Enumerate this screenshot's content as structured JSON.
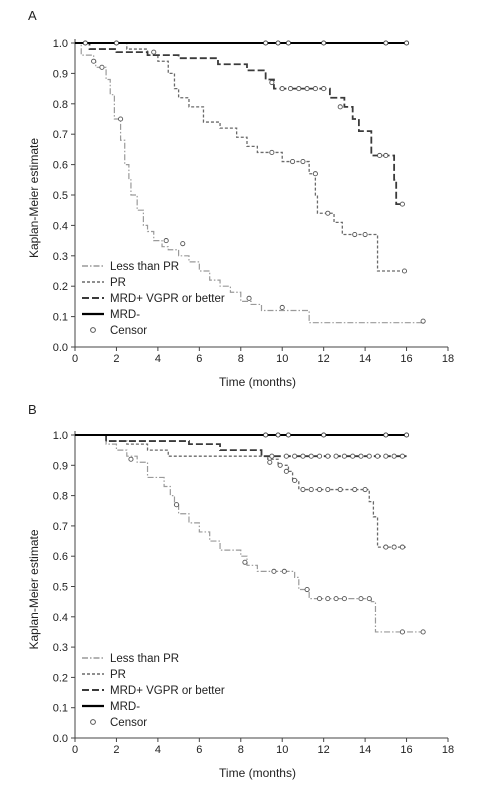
{
  "chart_data": [
    {
      "panel_label": "A",
      "type": "line",
      "xlabel": "Time (months)",
      "ylabel": "Kaplan-Meier estimate",
      "xlim": [
        0,
        18
      ],
      "ylim": [
        0.0,
        1.0
      ],
      "xticks": [
        "0",
        "2",
        "4",
        "6",
        "8",
        "10",
        "12",
        "14",
        "16",
        "18"
      ],
      "yticks": [
        "0.0",
        "0.1",
        "0.2",
        "0.3",
        "0.4",
        "0.5",
        "0.6",
        "0.7",
        "0.8",
        "0.9",
        "1.0"
      ],
      "legend": [
        {
          "label": "Less than PR",
          "style": "dash-dot",
          "color": "#9a9a9a"
        },
        {
          "label": "PR",
          "style": "short-dash",
          "color": "#6a6a6a"
        },
        {
          "label": "MRD+ VGPR or better",
          "style": "long-dash",
          "color": "#3a3a3a"
        },
        {
          "label": "MRD-",
          "style": "solid",
          "color": "#000000"
        },
        {
          "label": "Censor",
          "style": "marker",
          "color": "#555555"
        }
      ],
      "series": [
        {
          "name": "Less than PR",
          "style": "dash-dot",
          "color": "#9a9a9a",
          "steps": [
            [
              0,
              1.0
            ],
            [
              0.3,
              0.96
            ],
            [
              0.9,
              0.94
            ],
            [
              1.0,
              0.92
            ],
            [
              1.5,
              0.88
            ],
            [
              1.7,
              0.83
            ],
            [
              1.9,
              0.75
            ],
            [
              2.2,
              0.68
            ],
            [
              2.4,
              0.6
            ],
            [
              2.6,
              0.55
            ],
            [
              2.7,
              0.5
            ],
            [
              3.0,
              0.45
            ],
            [
              3.3,
              0.4
            ],
            [
              3.5,
              0.38
            ],
            [
              3.8,
              0.35
            ],
            [
              4.2,
              0.33
            ],
            [
              4.5,
              0.32
            ],
            [
              5.0,
              0.3
            ],
            [
              5.5,
              0.28
            ],
            [
              6.0,
              0.25
            ],
            [
              6.5,
              0.22
            ],
            [
              7.0,
              0.2
            ],
            [
              7.5,
              0.18
            ],
            [
              8.0,
              0.15
            ],
            [
              8.5,
              0.14
            ],
            [
              9.0,
              0.12
            ],
            [
              11.3,
              0.08
            ],
            [
              16.8,
              0.08
            ]
          ],
          "censors": [
            [
              0.9,
              0.94
            ],
            [
              1.3,
              0.92
            ],
            [
              2.2,
              0.75
            ],
            [
              4.4,
              0.35
            ],
            [
              5.2,
              0.34
            ],
            [
              8.4,
              0.16
            ],
            [
              10.0,
              0.13
            ],
            [
              16.8,
              0.085
            ]
          ]
        },
        {
          "name": "PR",
          "style": "short-dash",
          "color": "#6a6a6a",
          "steps": [
            [
              0,
              1.0
            ],
            [
              2.5,
              0.98
            ],
            [
              3.5,
              0.96
            ],
            [
              4.0,
              0.94
            ],
            [
              4.5,
              0.9
            ],
            [
              4.8,
              0.85
            ],
            [
              5.0,
              0.82
            ],
            [
              5.5,
              0.79
            ],
            [
              6.2,
              0.74
            ],
            [
              7.0,
              0.72
            ],
            [
              7.8,
              0.69
            ],
            [
              8.3,
              0.66
            ],
            [
              8.8,
              0.64
            ],
            [
              10.0,
              0.61
            ],
            [
              11.3,
              0.57
            ],
            [
              11.6,
              0.5
            ],
            [
              11.7,
              0.44
            ],
            [
              12.5,
              0.41
            ],
            [
              12.9,
              0.37
            ],
            [
              14.6,
              0.25
            ],
            [
              15.9,
              0.25
            ]
          ],
          "censors": [
            [
              9.5,
              0.64
            ],
            [
              10.5,
              0.61
            ],
            [
              11.0,
              0.61
            ],
            [
              11.6,
              0.57
            ],
            [
              12.2,
              0.44
            ],
            [
              13.5,
              0.37
            ],
            [
              14.0,
              0.37
            ],
            [
              15.9,
              0.25
            ]
          ]
        },
        {
          "name": "MRD+ VGPR or better",
          "style": "long-dash",
          "color": "#3a3a3a",
          "steps": [
            [
              0,
              1.0
            ],
            [
              0.7,
              0.98
            ],
            [
              2.0,
              0.97
            ],
            [
              3.5,
              0.96
            ],
            [
              5.0,
              0.95
            ],
            [
              6.9,
              0.93
            ],
            [
              8.3,
              0.91
            ],
            [
              9.2,
              0.88
            ],
            [
              9.6,
              0.85
            ],
            [
              12.3,
              0.82
            ],
            [
              13.0,
              0.79
            ],
            [
              13.4,
              0.75
            ],
            [
              13.7,
              0.71
            ],
            [
              14.3,
              0.63
            ],
            [
              15.4,
              0.55
            ],
            [
              15.5,
              0.47
            ],
            [
              15.9,
              0.47
            ]
          ],
          "censors": [
            [
              3.8,
              0.97
            ],
            [
              9.5,
              0.87
            ],
            [
              10.0,
              0.85
            ],
            [
              10.4,
              0.85
            ],
            [
              10.8,
              0.85
            ],
            [
              11.2,
              0.85
            ],
            [
              11.6,
              0.85
            ],
            [
              12.0,
              0.85
            ],
            [
              12.8,
              0.79
            ],
            [
              14.7,
              0.63
            ],
            [
              15.0,
              0.63
            ],
            [
              15.8,
              0.47
            ]
          ]
        },
        {
          "name": "MRD-",
          "style": "solid",
          "color": "#000000",
          "steps": [
            [
              0,
              1.0
            ],
            [
              16.0,
              1.0
            ]
          ],
          "censors": [
            [
              0.5,
              1.0
            ],
            [
              2.0,
              1.0
            ],
            [
              9.2,
              1.0
            ],
            [
              9.8,
              1.0
            ],
            [
              10.3,
              1.0
            ],
            [
              12.0,
              1.0
            ],
            [
              15.0,
              1.0
            ],
            [
              16.0,
              1.0
            ]
          ]
        }
      ]
    },
    {
      "panel_label": "B",
      "type": "line",
      "xlabel": "Time (months)",
      "ylabel": "Kaplan-Meier estimate",
      "xlim": [
        0,
        18
      ],
      "ylim": [
        0.0,
        1.0
      ],
      "xticks": [
        "0",
        "2",
        "4",
        "6",
        "8",
        "10",
        "12",
        "14",
        "16",
        "18"
      ],
      "yticks": [
        "0.0",
        "0.1",
        "0.2",
        "0.3",
        "0.4",
        "0.5",
        "0.6",
        "0.7",
        "0.8",
        "0.9",
        "1.0"
      ],
      "legend": [
        {
          "label": "Less than PR",
          "style": "dash-dot",
          "color": "#9a9a9a"
        },
        {
          "label": "PR",
          "style": "short-dash",
          "color": "#6a6a6a"
        },
        {
          "label": "MRD+ VGPR or better",
          "style": "long-dash",
          "color": "#3a3a3a"
        },
        {
          "label": "MRD-",
          "style": "solid",
          "color": "#000000"
        },
        {
          "label": "Censor",
          "style": "marker",
          "color": "#555555"
        }
      ],
      "series": [
        {
          "name": "Less than PR",
          "style": "dash-dot",
          "color": "#9a9a9a",
          "steps": [
            [
              0,
              1.0
            ],
            [
              1.5,
              0.97
            ],
            [
              2.0,
              0.95
            ],
            [
              2.5,
              0.93
            ],
            [
              3.0,
              0.91
            ],
            [
              3.5,
              0.86
            ],
            [
              4.3,
              0.83
            ],
            [
              4.6,
              0.8
            ],
            [
              4.8,
              0.77
            ],
            [
              5.0,
              0.74
            ],
            [
              5.5,
              0.71
            ],
            [
              6.0,
              0.68
            ],
            [
              6.5,
              0.65
            ],
            [
              7.0,
              0.62
            ],
            [
              8.0,
              0.6
            ],
            [
              8.3,
              0.57
            ],
            [
              8.8,
              0.55
            ],
            [
              10.6,
              0.53
            ],
            [
              10.8,
              0.49
            ],
            [
              11.3,
              0.46
            ],
            [
              14.3,
              0.45
            ],
            [
              14.5,
              0.35
            ],
            [
              16.8,
              0.35
            ]
          ],
          "censors": [
            [
              2.7,
              0.92
            ],
            [
              4.9,
              0.77
            ],
            [
              8.2,
              0.58
            ],
            [
              9.6,
              0.55
            ],
            [
              10.1,
              0.55
            ],
            [
              11.2,
              0.49
            ],
            [
              11.8,
              0.46
            ],
            [
              12.2,
              0.46
            ],
            [
              12.6,
              0.46
            ],
            [
              13.0,
              0.46
            ],
            [
              13.8,
              0.46
            ],
            [
              14.2,
              0.46
            ],
            [
              15.8,
              0.35
            ],
            [
              16.8,
              0.35
            ]
          ]
        },
        {
          "name": "PR",
          "style": "short-dash",
          "color": "#6a6a6a",
          "steps": [
            [
              0,
              1.0
            ],
            [
              1.5,
              0.98
            ],
            [
              2.5,
              0.97
            ],
            [
              3.5,
              0.95
            ],
            [
              4.5,
              0.93
            ],
            [
              9.3,
              0.92
            ],
            [
              9.8,
              0.9
            ],
            [
              10.3,
              0.88
            ],
            [
              10.5,
              0.85
            ],
            [
              10.8,
              0.82
            ],
            [
              14.2,
              0.78
            ],
            [
              14.4,
              0.73
            ],
            [
              14.6,
              0.63
            ],
            [
              16.0,
              0.63
            ]
          ],
          "censors": [
            [
              9.4,
              0.91
            ],
            [
              9.9,
              0.9
            ],
            [
              10.2,
              0.88
            ],
            [
              10.6,
              0.85
            ],
            [
              11.0,
              0.82
            ],
            [
              11.4,
              0.82
            ],
            [
              11.8,
              0.82
            ],
            [
              12.2,
              0.82
            ],
            [
              12.8,
              0.82
            ],
            [
              13.5,
              0.82
            ],
            [
              14.0,
              0.82
            ],
            [
              15.0,
              0.63
            ],
            [
              15.4,
              0.63
            ],
            [
              15.8,
              0.63
            ]
          ]
        },
        {
          "name": "MRD+ VGPR or better",
          "style": "long-dash",
          "color": "#3a3a3a",
          "steps": [
            [
              0,
              1.0
            ],
            [
              1.5,
              0.98
            ],
            [
              5.5,
              0.97
            ],
            [
              7.0,
              0.95
            ],
            [
              9.0,
              0.93
            ],
            [
              16.0,
              0.93
            ]
          ],
          "censors": [
            [
              9.5,
              0.93
            ],
            [
              10.2,
              0.93
            ],
            [
              10.6,
              0.93
            ],
            [
              11.0,
              0.93
            ],
            [
              11.4,
              0.93
            ],
            [
              11.8,
              0.93
            ],
            [
              12.2,
              0.93
            ],
            [
              12.6,
              0.93
            ],
            [
              13.0,
              0.93
            ],
            [
              13.4,
              0.93
            ],
            [
              13.8,
              0.93
            ],
            [
              14.2,
              0.93
            ],
            [
              14.6,
              0.93
            ],
            [
              15.0,
              0.93
            ],
            [
              15.4,
              0.93
            ],
            [
              15.8,
              0.93
            ]
          ]
        },
        {
          "name": "MRD-",
          "style": "solid",
          "color": "#000000",
          "steps": [
            [
              0,
              1.0
            ],
            [
              16.0,
              1.0
            ]
          ],
          "censors": [
            [
              9.2,
              1.0
            ],
            [
              9.8,
              1.0
            ],
            [
              10.3,
              1.0
            ],
            [
              12.0,
              1.0
            ],
            [
              15.0,
              1.0
            ],
            [
              16.0,
              1.0
            ]
          ]
        }
      ]
    }
  ]
}
